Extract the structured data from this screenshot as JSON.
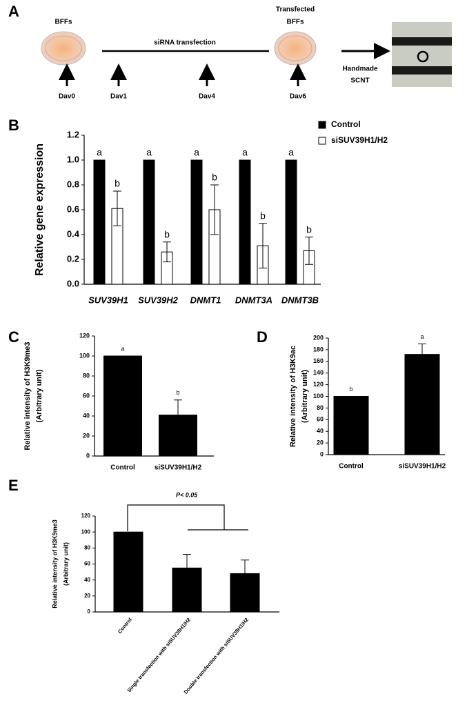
{
  "diagram": {
    "panel": "A",
    "dish1_label": "BFFs",
    "step_label": "siRNA transfection",
    "dish2_label": [
      "Transfected",
      "BFFs"
    ],
    "days": [
      "Dav0",
      "Dav1",
      "Dav4",
      "Dav6"
    ],
    "end_label": [
      "Handmade",
      "SCNT"
    ]
  },
  "chart_data": [
    {
      "panel": "B",
      "type": "bar",
      "ylabel": "Relative gene expression",
      "categories": [
        "SUV39H1",
        "SUV39H2",
        "DNMT1",
        "DNMT3A",
        "DNMT3B"
      ],
      "series": [
        {
          "name": "Control",
          "color": "#000000",
          "values": [
            1,
            1,
            1,
            1,
            1
          ],
          "letters": [
            "a",
            "a",
            "a",
            "a",
            "a"
          ]
        },
        {
          "name": "siSUV39H1/H2",
          "color": "#ffffff",
          "values": [
            0.61,
            0.26,
            0.6,
            0.31,
            0.27
          ],
          "errors": [
            0.14,
            0.08,
            0.2,
            0.18,
            0.11
          ],
          "letters": [
            "b",
            "b",
            "b",
            "b",
            "b"
          ]
        }
      ],
      "ylim": [
        0,
        1.2
      ],
      "yticks": [
        {
          "value": 0,
          "label": "0.0"
        },
        0.2,
        0.4,
        0.6,
        0.8,
        {
          "value": 1,
          "label": "1.0"
        },
        1.2
      ],
      "legend": "upper right"
    },
    {
      "panel": "C",
      "type": "bar",
      "ylabel": [
        "Relative intensity of H3K9me3",
        "(Arbitrary unit)"
      ],
      "categories": [
        "Control",
        "siSUV39H1/H2"
      ],
      "values": [
        100,
        41
      ],
      "errors": [
        null,
        15
      ],
      "letters": [
        "a",
        "b"
      ],
      "color": "#000000",
      "ylim": [
        0,
        120
      ],
      "yticks": [
        0,
        20,
        40,
        60,
        80,
        100,
        120
      ]
    },
    {
      "panel": "D",
      "type": "bar",
      "ylabel": [
        "Relative intensity of H3K9ac",
        "(Arbitrary unit)"
      ],
      "categories": [
        "Control",
        "siSUV39H1/H2"
      ],
      "values": [
        100,
        172
      ],
      "errors": [
        null,
        18
      ],
      "letters": [
        "b",
        "a"
      ],
      "color": "#000000",
      "ylim": [
        0,
        200
      ],
      "yticks": [
        0,
        20,
        40,
        60,
        80,
        100,
        120,
        140,
        160,
        180,
        200
      ]
    },
    {
      "panel": "E",
      "type": "bar",
      "ylabel": [
        "Relative intensity of H3K9me3",
        "(Arbitrary unit)"
      ],
      "categories": [
        "Control",
        "Single transfection with siSUV39H1/H2",
        "Double transfection with siSUV39H1/H2"
      ],
      "values": [
        100,
        55,
        48
      ],
      "errors": [
        null,
        17,
        17
      ],
      "color": "#000000",
      "annotation": "P< 0.05",
      "ylim": [
        0,
        120
      ],
      "yticks": [
        0,
        20,
        40,
        60,
        80,
        100,
        120
      ]
    }
  ]
}
